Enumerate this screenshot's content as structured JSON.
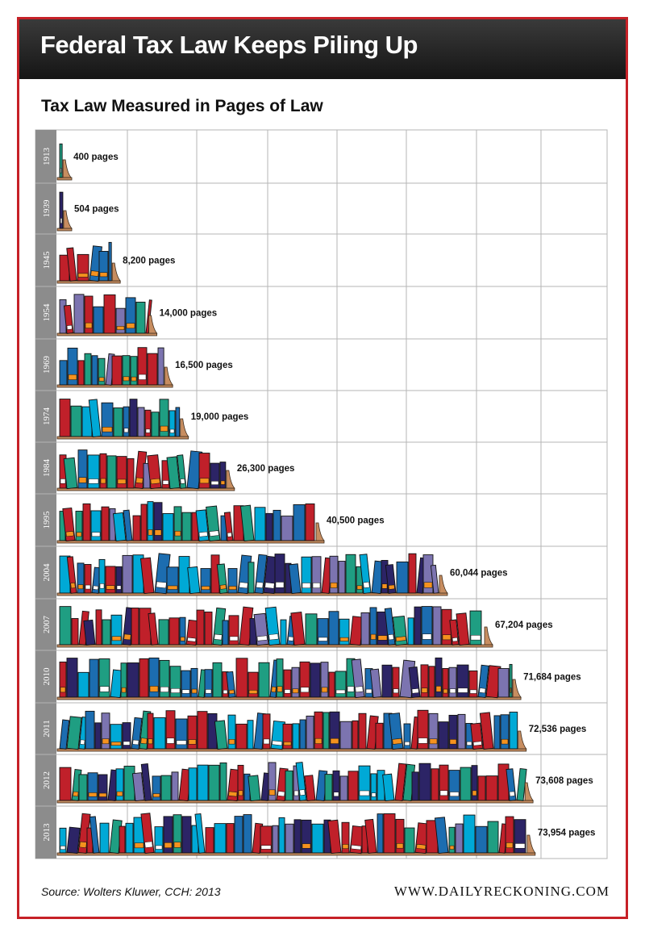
{
  "header": {
    "title": "Federal Tax Law Keeps Piling Up"
  },
  "footer": {
    "source": "Source: Wolters Kluwer, CCH: 2013",
    "website": "WWW.DAILYRECKONING.COM"
  },
  "colors": {
    "frame": "#c62127",
    "header_bg": "#1f1f1f",
    "grid": "#b5b5b5",
    "year_band": "#8c8c8c",
    "books": [
      "#1f9e82",
      "#1c6db0",
      "#7c74b0",
      "#c0202a",
      "#2c2466",
      "#00a9d6",
      "#f5921e"
    ],
    "shelf": "#c78d60"
  },
  "chart_data": {
    "type": "bar",
    "title": "Tax Law Measured in Pages of Law",
    "xlabel": "",
    "ylabel": "",
    "orientation": "horizontal",
    "categories": [
      "1913",
      "1939",
      "1945",
      "1954",
      "1969",
      "1974",
      "1984",
      "1995",
      "2004",
      "2007",
      "2010",
      "2011",
      "2012",
      "2013"
    ],
    "values": [
      400,
      504,
      8200,
      14000,
      16500,
      19000,
      26300,
      40500,
      60044,
      67204,
      71684,
      72536,
      73608,
      73954
    ],
    "labels": [
      "400 pages",
      "504 pages",
      "8,200 pages",
      "14,000 pages",
      "16,500 pages",
      "19,000 pages",
      "26,300 pages",
      "40,500 pages",
      "60,044 pages",
      "67,204 pages",
      "71,684 pages",
      "72,536 pages",
      "73,608 pages",
      "73,954 pages"
    ],
    "xlim": [
      0,
      80000
    ],
    "grid": true,
    "mark_style": "bookshelf"
  }
}
